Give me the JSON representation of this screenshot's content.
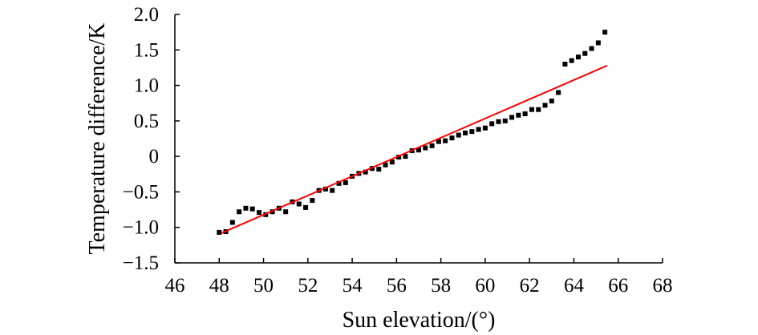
{
  "chart_data": {
    "type": "scatter",
    "title": "",
    "xlabel": "Sun elevation/(°)",
    "ylabel": "Temperature difference/K",
    "xlim": [
      46,
      68
    ],
    "ylim": [
      -1.5,
      2.0
    ],
    "x_ticks": [
      46,
      48,
      50,
      52,
      54,
      56,
      58,
      60,
      62,
      64,
      66,
      68
    ],
    "x_tick_labels": [
      "46",
      "48",
      "50",
      "52",
      "54",
      "56",
      "58",
      "60",
      "62",
      "64",
      "66",
      "68"
    ],
    "y_ticks": [
      -1.5,
      -1.0,
      -0.5,
      0,
      0.5,
      1.0,
      1.5,
      2.0
    ],
    "y_tick_labels": [
      "−1.5",
      "−1.0",
      "−0.5",
      "0",
      "0.5",
      "1.0",
      "1.5",
      "2.0"
    ],
    "grid": false,
    "legend": "none",
    "marker_color": "#000000",
    "fit_line_color": "#ff0000",
    "series": [
      {
        "kind": "scatter",
        "x": [
          48.0,
          48.3,
          48.6,
          48.9,
          49.2,
          49.5,
          49.8,
          50.1,
          50.4,
          50.7,
          51.0,
          51.3,
          51.6,
          51.9,
          52.2,
          52.5,
          52.8,
          53.1,
          53.4,
          53.7,
          54.0,
          54.3,
          54.6,
          54.9,
          55.2,
          55.5,
          55.8,
          56.1,
          56.4,
          56.7,
          57.0,
          57.3,
          57.6,
          57.9,
          58.2,
          58.5,
          58.8,
          59.1,
          59.4,
          59.7,
          60.0,
          60.3,
          60.6,
          60.9,
          61.2,
          61.5,
          61.8,
          62.1,
          62.4,
          62.7,
          63.0,
          63.3,
          63.6,
          63.9,
          64.2,
          64.5,
          64.8,
          65.1,
          65.4
        ],
        "y": [
          -1.07,
          -1.06,
          -0.93,
          -0.78,
          -0.73,
          -0.74,
          -0.79,
          -0.82,
          -0.78,
          -0.73,
          -0.78,
          -0.64,
          -0.67,
          -0.72,
          -0.62,
          -0.48,
          -0.46,
          -0.48,
          -0.38,
          -0.37,
          -0.28,
          -0.24,
          -0.22,
          -0.17,
          -0.18,
          -0.12,
          -0.08,
          -0.01,
          0.0,
          0.08,
          0.09,
          0.12,
          0.15,
          0.21,
          0.22,
          0.26,
          0.3,
          0.33,
          0.35,
          0.38,
          0.4,
          0.46,
          0.49,
          0.5,
          0.55,
          0.58,
          0.6,
          0.66,
          0.66,
          0.72,
          0.78,
          0.9,
          1.3,
          1.35,
          1.4,
          1.45,
          1.52,
          1.6,
          1.75
        ]
      },
      {
        "kind": "line",
        "x": [
          48.1,
          65.5
        ],
        "y": [
          -1.08,
          1.28
        ]
      }
    ]
  }
}
